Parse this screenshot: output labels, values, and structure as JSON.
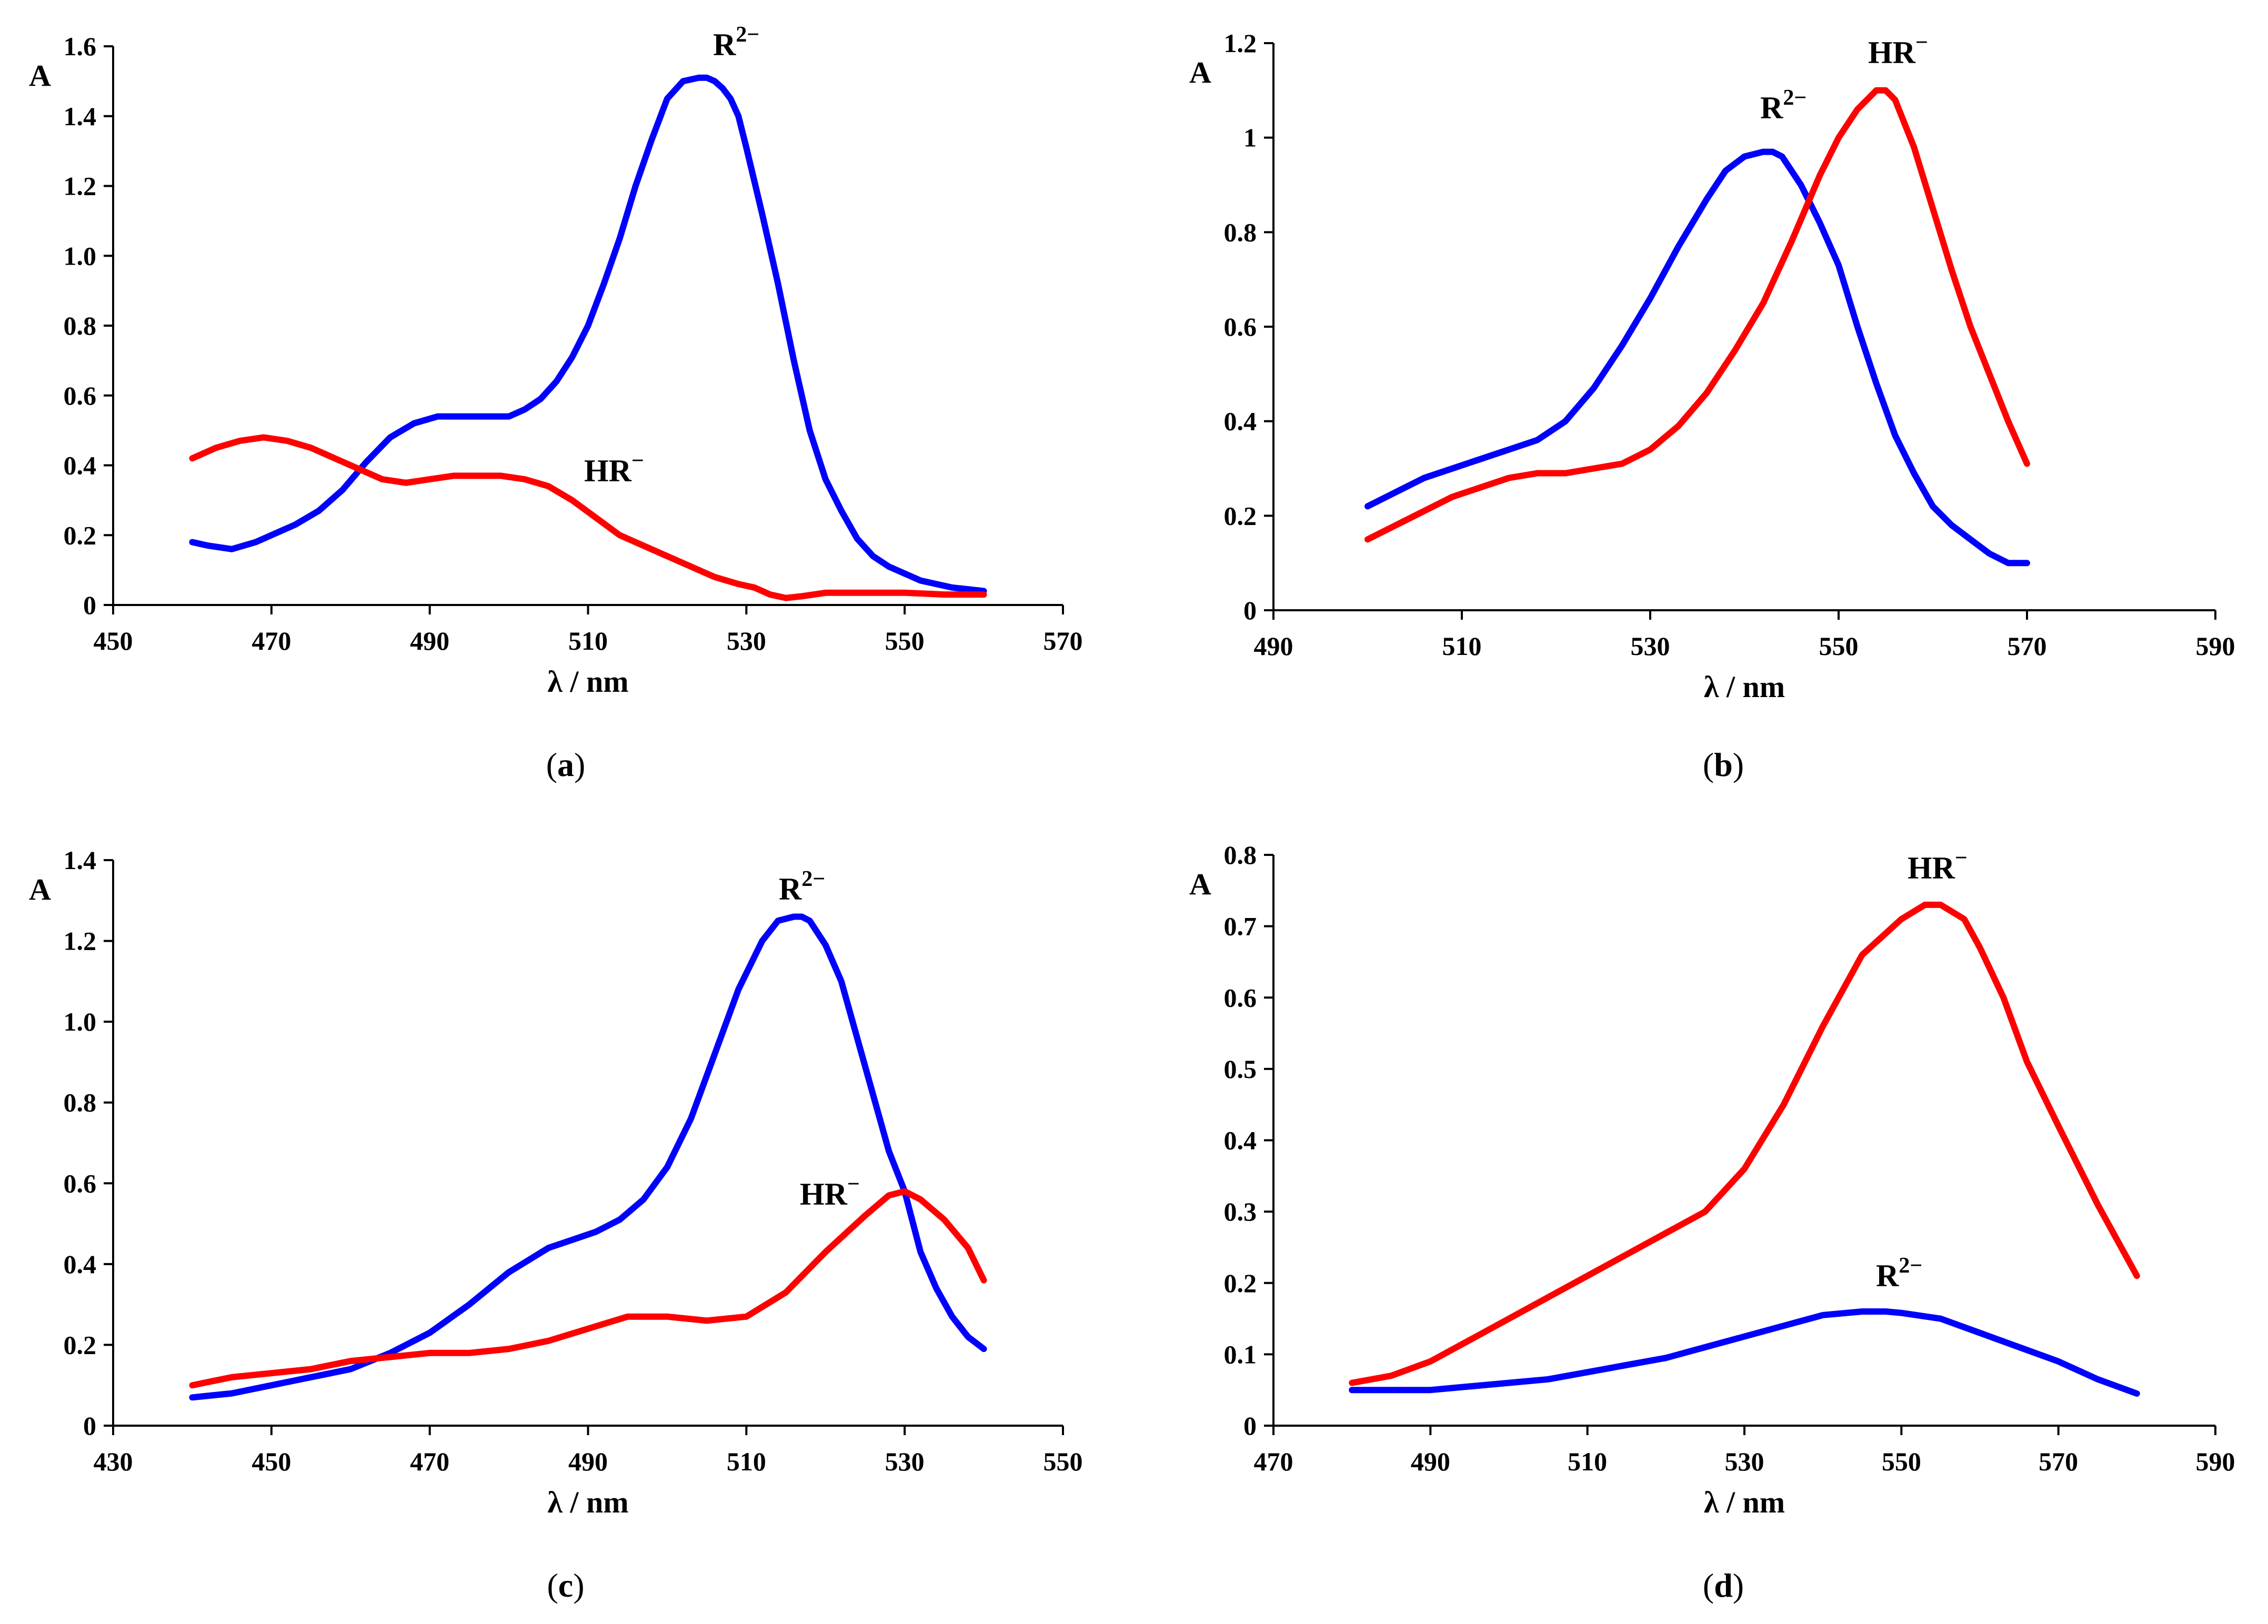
{
  "chart_data": [
    {
      "type": "line",
      "panel_label": [
        "(",
        "a",
        ")"
      ],
      "ylabel": "A",
      "xlabel": "λ / nm",
      "xlim": [
        450,
        570
      ],
      "ylim": [
        0,
        1.6
      ],
      "xticks": [
        "450",
        "470",
        "490",
        "510",
        "530",
        "550",
        "570"
      ],
      "yticks": [
        "0",
        "0.2",
        "0.4",
        "0.6",
        "0.8",
        "1.0",
        "1.2",
        "1.4",
        "1.6"
      ],
      "grid": false,
      "series": [
        {
          "name": [
            "R",
            "2−"
          ],
          "color": "#0000ff",
          "x": [
            460,
            462,
            465,
            468,
            470,
            473,
            476,
            479,
            482,
            485,
            488,
            491,
            494,
            497,
            500,
            502,
            504,
            506,
            508,
            510,
            512,
            514,
            516,
            518,
            520,
            522,
            524,
            525,
            526,
            527,
            528,
            529,
            530,
            532,
            534,
            536,
            538,
            540,
            542,
            544,
            546,
            548,
            550,
            552,
            554,
            556,
            558,
            560
          ],
          "y": [
            0.18,
            0.17,
            0.16,
            0.18,
            0.2,
            0.23,
            0.27,
            0.33,
            0.41,
            0.48,
            0.52,
            0.54,
            0.54,
            0.54,
            0.54,
            0.56,
            0.59,
            0.64,
            0.71,
            0.8,
            0.92,
            1.05,
            1.2,
            1.33,
            1.45,
            1.5,
            1.51,
            1.51,
            1.5,
            1.48,
            1.45,
            1.4,
            1.31,
            1.12,
            0.92,
            0.7,
            0.5,
            0.36,
            0.27,
            0.19,
            0.14,
            0.11,
            0.09,
            0.07,
            0.06,
            0.05,
            0.045,
            0.04
          ]
        },
        {
          "name": [
            "HR",
            "−"
          ],
          "color": "#ff0000",
          "x": [
            460,
            463,
            466,
            469,
            472,
            475,
            478,
            481,
            484,
            487,
            490,
            493,
            496,
            499,
            502,
            505,
            508,
            511,
            514,
            517,
            520,
            523,
            526,
            529,
            531,
            533,
            535,
            537,
            540,
            545,
            550,
            555,
            560
          ],
          "y": [
            0.42,
            0.45,
            0.47,
            0.48,
            0.47,
            0.45,
            0.42,
            0.39,
            0.36,
            0.35,
            0.36,
            0.37,
            0.37,
            0.37,
            0.36,
            0.34,
            0.3,
            0.25,
            0.2,
            0.17,
            0.14,
            0.11,
            0.08,
            0.06,
            0.05,
            0.03,
            0.02,
            0.025,
            0.035,
            0.035,
            0.035,
            0.03,
            0.03
          ]
        }
      ]
    },
    {
      "type": "line",
      "panel_label": [
        "(",
        "b",
        ")"
      ],
      "ylabel": "A",
      "xlabel": "λ / nm",
      "xlim": [
        490,
        590
      ],
      "ylim": [
        0,
        1.2
      ],
      "xticks": [
        "490",
        "510",
        "530",
        "550",
        "570",
        "590"
      ],
      "yticks": [
        "0",
        "0.2",
        "0.4",
        "0.6",
        "0.8",
        "1",
        "1.2"
      ],
      "grid": false,
      "series": [
        {
          "name": [
            "R",
            "2−"
          ],
          "color": "#0000ff",
          "x": [
            500,
            503,
            506,
            509,
            512,
            515,
            518,
            521,
            524,
            527,
            530,
            533,
            536,
            538,
            540,
            542,
            543,
            544,
            546,
            548,
            550,
            552,
            554,
            556,
            558,
            560,
            562,
            564,
            566,
            568,
            570
          ],
          "y": [
            0.22,
            0.25,
            0.28,
            0.3,
            0.32,
            0.34,
            0.36,
            0.4,
            0.47,
            0.56,
            0.66,
            0.77,
            0.87,
            0.93,
            0.96,
            0.97,
            0.97,
            0.96,
            0.9,
            0.82,
            0.73,
            0.6,
            0.48,
            0.37,
            0.29,
            0.22,
            0.18,
            0.15,
            0.12,
            0.1,
            0.1
          ]
        },
        {
          "name": [
            "HR",
            "−"
          ],
          "color": "#ff0000",
          "x": [
            500,
            503,
            506,
            509,
            512,
            515,
            518,
            521,
            524,
            527,
            530,
            533,
            536,
            539,
            542,
            545,
            548,
            550,
            552,
            554,
            555,
            556,
            558,
            560,
            562,
            564,
            566,
            568,
            570
          ],
          "y": [
            0.15,
            0.18,
            0.21,
            0.24,
            0.26,
            0.28,
            0.29,
            0.29,
            0.3,
            0.31,
            0.34,
            0.39,
            0.46,
            0.55,
            0.65,
            0.78,
            0.92,
            1.0,
            1.06,
            1.1,
            1.1,
            1.08,
            0.98,
            0.85,
            0.72,
            0.6,
            0.5,
            0.4,
            0.31
          ]
        }
      ]
    },
    {
      "type": "line",
      "panel_label": [
        "(",
        "c",
        ")"
      ],
      "ylabel": "A",
      "xlabel": "λ / nm",
      "xlim": [
        430,
        550
      ],
      "ylim": [
        0,
        1.4
      ],
      "xticks": [
        "430",
        "450",
        "470",
        "490",
        "510",
        "530",
        "550"
      ],
      "yticks": [
        "0",
        "0.2",
        "0.4",
        "0.6",
        "0.8",
        "1.0",
        "1.2",
        "1.4"
      ],
      "grid": false,
      "series": [
        {
          "name": [
            "R",
            "2−"
          ],
          "color": "#0000ff",
          "x": [
            440,
            445,
            450,
            455,
            460,
            465,
            470,
            475,
            480,
            485,
            488,
            491,
            494,
            497,
            500,
            503,
            506,
            509,
            512,
            514,
            516,
            517,
            518,
            520,
            522,
            524,
            526,
            528,
            530,
            532,
            534,
            536,
            538,
            540
          ],
          "y": [
            0.07,
            0.08,
            0.1,
            0.12,
            0.14,
            0.18,
            0.23,
            0.3,
            0.38,
            0.44,
            0.46,
            0.48,
            0.51,
            0.56,
            0.64,
            0.76,
            0.92,
            1.08,
            1.2,
            1.25,
            1.26,
            1.26,
            1.25,
            1.19,
            1.1,
            0.96,
            0.82,
            0.68,
            0.58,
            0.43,
            0.34,
            0.27,
            0.22,
            0.19
          ]
        },
        {
          "name": [
            "HR",
            "−"
          ],
          "color": "#ff0000",
          "x": [
            440,
            445,
            450,
            455,
            460,
            465,
            470,
            475,
            480,
            485,
            490,
            495,
            500,
            505,
            510,
            515,
            520,
            525,
            528,
            530,
            532,
            535,
            538,
            540
          ],
          "y": [
            0.1,
            0.12,
            0.13,
            0.14,
            0.16,
            0.17,
            0.18,
            0.18,
            0.19,
            0.21,
            0.24,
            0.27,
            0.27,
            0.26,
            0.27,
            0.33,
            0.43,
            0.52,
            0.57,
            0.58,
            0.56,
            0.51,
            0.44,
            0.36
          ]
        }
      ]
    },
    {
      "type": "line",
      "panel_label": [
        "(",
        "d",
        ")"
      ],
      "ylabel": "A",
      "xlabel": "λ / nm",
      "xlim": [
        470,
        590
      ],
      "ylim": [
        0,
        0.8
      ],
      "xticks": [
        "470",
        "490",
        "510",
        "530",
        "550",
        "570",
        "590"
      ],
      "yticks": [
        "0",
        "0.1",
        "0.2",
        "0.3",
        "0.4",
        "0.5",
        "0.6",
        "0.7",
        "0.8"
      ],
      "grid": false,
      "series": [
        {
          "name": [
            "HR",
            "−"
          ],
          "color": "#ff0000",
          "x": [
            480,
            485,
            490,
            495,
            500,
            505,
            510,
            515,
            520,
            525,
            530,
            535,
            540,
            545,
            550,
            553,
            555,
            558,
            560,
            563,
            566,
            570,
            575,
            580
          ],
          "y": [
            0.06,
            0.07,
            0.09,
            0.12,
            0.15,
            0.18,
            0.21,
            0.24,
            0.27,
            0.3,
            0.36,
            0.45,
            0.56,
            0.66,
            0.71,
            0.73,
            0.73,
            0.71,
            0.67,
            0.6,
            0.51,
            0.42,
            0.31,
            0.21
          ]
        },
        {
          "name": [
            "R",
            "2−"
          ],
          "color": "#0000ff",
          "x": [
            480,
            485,
            490,
            495,
            500,
            505,
            510,
            515,
            520,
            525,
            530,
            535,
            540,
            545,
            548,
            550,
            555,
            560,
            565,
            570,
            575,
            580
          ],
          "y": [
            0.05,
            0.05,
            0.05,
            0.055,
            0.06,
            0.065,
            0.075,
            0.085,
            0.095,
            0.11,
            0.125,
            0.14,
            0.155,
            0.16,
            0.16,
            0.158,
            0.15,
            0.13,
            0.11,
            0.09,
            0.065,
            0.045
          ]
        }
      ]
    }
  ]
}
